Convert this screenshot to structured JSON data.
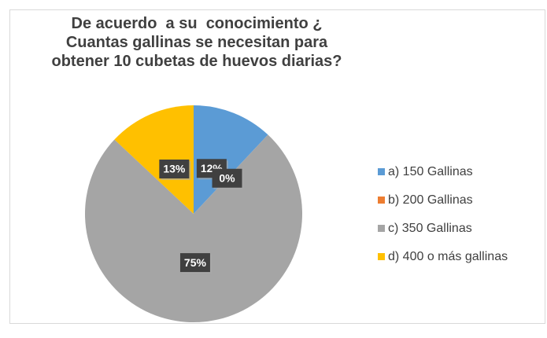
{
  "chart_data": {
    "type": "pie",
    "title": "De acuerdo  a su  conocimiento ¿ Cuantas gallinas se necesitan para obtener 10 cubetas de huevos diarias?",
    "categories": [
      "a) 150 Gallinas",
      "b) 200 Gallinas",
      "c) 350 Gallinas",
      "d) 400 o más gallinas"
    ],
    "values": [
      12,
      0,
      75,
      13
    ],
    "value_labels": [
      "12%",
      "0%",
      "75%",
      "13%"
    ],
    "colors": [
      "#5b9bd5",
      "#ed7d31",
      "#a5a5a5",
      "#ffc000"
    ],
    "legend": "right"
  }
}
